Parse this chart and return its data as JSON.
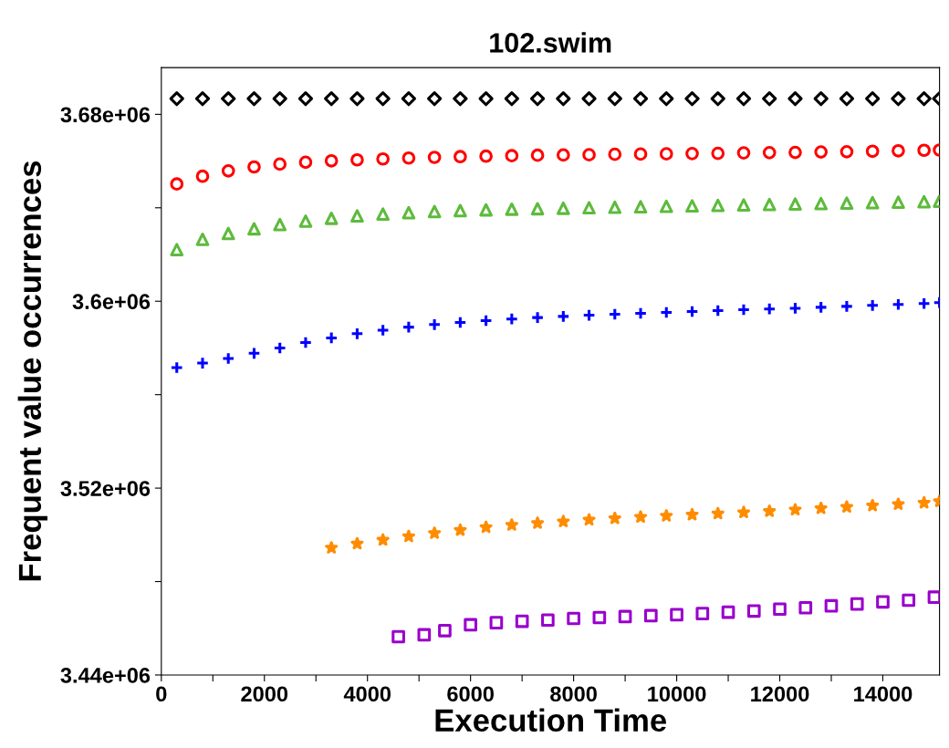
{
  "chart_data": {
    "type": "scatter",
    "title": "102.swim",
    "xlabel": "Execution Time",
    "ylabel": "Frequent value occurrences",
    "xlim": [
      0,
      15100
    ],
    "ylim": [
      3440000,
      3700000
    ],
    "xticks": [
      0,
      {
        "value": 1000,
        "label": null
      },
      2000,
      {
        "value": 3000,
        "label": null
      },
      4000,
      {
        "value": 5000,
        "label": null
      },
      6000,
      {
        "value": 7000,
        "label": null
      },
      8000,
      {
        "value": 9000,
        "label": null
      },
      10000,
      {
        "value": 11000,
        "label": null
      },
      12000,
      {
        "value": 13000,
        "label": null
      },
      14000
    ],
    "yticks": [
      {
        "value": 3440000,
        "label": "3.44e+06"
      },
      {
        "value": 3480000,
        "label": null
      },
      {
        "value": 3520000,
        "label": "3.52e+06"
      },
      {
        "value": 3560000,
        "label": null
      },
      {
        "value": 3600000,
        "label": "3.6e+06"
      },
      {
        "value": 3640000,
        "label": null
      },
      {
        "value": 3680000,
        "label": "3.68e+06"
      }
    ],
    "grid": false,
    "series": [
      {
        "color": "#000000",
        "marker": "diamond",
        "x": [
          300,
          800,
          1300,
          1800,
          2300,
          2800,
          3300,
          3800,
          4300,
          4800,
          5300,
          5800,
          6300,
          6800,
          7300,
          7800,
          8300,
          8800,
          9300,
          9800,
          10300,
          10800,
          11300,
          11800,
          12300,
          12800,
          13300,
          13800,
          14300,
          14800,
          15100
        ],
        "values": [
          3686700,
          3686700,
          3686700,
          3686700,
          3686700,
          3686700,
          3686700,
          3686700,
          3686700,
          3686700,
          3686700,
          3686700,
          3686700,
          3686700,
          3686700,
          3686700,
          3686700,
          3686700,
          3686700,
          3686700,
          3686700,
          3686700,
          3686700,
          3686700,
          3686700,
          3686700,
          3686700,
          3686700,
          3686700,
          3686700,
          3686700
        ]
      },
      {
        "color": "#ff0000",
        "marker": "circle",
        "x": [
          300,
          800,
          1300,
          1800,
          2300,
          2800,
          3300,
          3800,
          4300,
          4800,
          5300,
          5800,
          6300,
          6800,
          7300,
          7800,
          8300,
          8800,
          9300,
          9800,
          10300,
          10800,
          11300,
          11800,
          12300,
          12800,
          13300,
          13800,
          14300,
          14800,
          15100
        ],
        "values": [
          3650200,
          3653500,
          3655800,
          3657500,
          3658700,
          3659500,
          3660100,
          3660500,
          3660900,
          3661300,
          3661600,
          3661900,
          3662100,
          3662300,
          3662500,
          3662600,
          3662700,
          3662900,
          3663000,
          3663100,
          3663200,
          3663300,
          3663500,
          3663600,
          3663700,
          3663900,
          3664000,
          3664200,
          3664400,
          3664600,
          3664700
        ]
      },
      {
        "color": "#5dbb3c",
        "marker": "triangle",
        "x": [
          300,
          800,
          1300,
          1800,
          2300,
          2800,
          3300,
          3800,
          4300,
          4800,
          5300,
          5800,
          6300,
          6800,
          7300,
          7800,
          8300,
          8800,
          9300,
          9800,
          10300,
          10800,
          11300,
          11800,
          12300,
          12800,
          13300,
          13800,
          14300,
          14800,
          15100
        ],
        "values": [
          3622100,
          3626500,
          3629000,
          3631000,
          3632800,
          3634300,
          3635500,
          3636500,
          3637300,
          3637900,
          3638400,
          3638800,
          3639100,
          3639400,
          3639600,
          3639800,
          3640000,
          3640200,
          3640400,
          3640600,
          3640800,
          3641000,
          3641200,
          3641400,
          3641600,
          3641800,
          3642000,
          3642200,
          3642400,
          3642600,
          3642800
        ]
      },
      {
        "color": "#0000ff",
        "marker": "plus",
        "x": [
          300,
          800,
          1300,
          1800,
          2300,
          2800,
          3300,
          3800,
          4300,
          4800,
          5300,
          5800,
          6300,
          6800,
          7300,
          7800,
          8300,
          8800,
          9300,
          9800,
          10300,
          10800,
          11300,
          11800,
          12300,
          12800,
          13300,
          13800,
          14300,
          14800,
          15100
        ],
        "values": [
          3571600,
          3573500,
          3575500,
          3577700,
          3580000,
          3582300,
          3584300,
          3586100,
          3587600,
          3588900,
          3590000,
          3590900,
          3591700,
          3592400,
          3593000,
          3593500,
          3594000,
          3594400,
          3594800,
          3595200,
          3595600,
          3596000,
          3596400,
          3596700,
          3597000,
          3597400,
          3597800,
          3598200,
          3598600,
          3599000,
          3599400
        ]
      },
      {
        "color": "#ff8c00",
        "marker": "star",
        "x": [
          3300,
          3800,
          4300,
          4800,
          5300,
          5800,
          6300,
          6800,
          7300,
          7800,
          8300,
          8800,
          9300,
          9800,
          10300,
          10800,
          11300,
          11800,
          12300,
          12800,
          13300,
          13800,
          14300,
          14800,
          15100
        ],
        "values": [
          3494400,
          3496200,
          3497800,
          3499300,
          3500700,
          3502000,
          3503200,
          3504200,
          3505000,
          3505700,
          3506400,
          3507000,
          3507600,
          3508100,
          3508600,
          3509100,
          3509600,
          3510100,
          3510700,
          3511300,
          3511900,
          3512500,
          3513100,
          3513700,
          3514300
        ]
      },
      {
        "color": "#9900cc",
        "marker": "square",
        "x": [
          4600,
          5100,
          5500,
          6000,
          6500,
          7000,
          7500,
          8000,
          8500,
          9000,
          9500,
          10000,
          10500,
          11000,
          11500,
          12000,
          12500,
          13000,
          13500,
          14000,
          14500,
          15000
        ],
        "values": [
          3456400,
          3457200,
          3459000,
          3461500,
          3462400,
          3463000,
          3463500,
          3464200,
          3464600,
          3465000,
          3465400,
          3465800,
          3466300,
          3466900,
          3467400,
          3468200,
          3468800,
          3469600,
          3470400,
          3471300,
          3472000,
          3473300
        ]
      }
    ]
  }
}
